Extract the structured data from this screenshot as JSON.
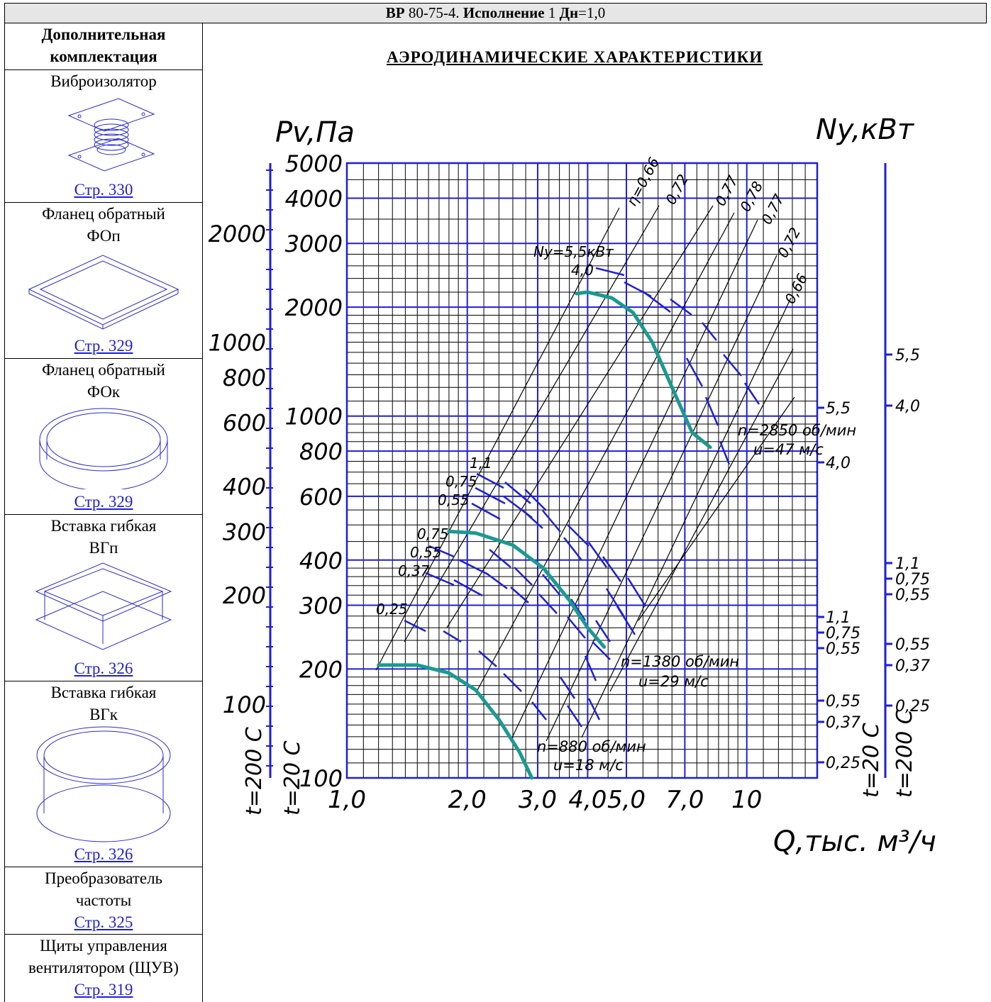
{
  "header": {
    "model": "ВР",
    "size": "80-75-4.",
    "exec_label": "Исполнение",
    "exec_value": "1",
    "dn_label": "Дн",
    "dn_value": "=1,0"
  },
  "sidebar": {
    "heading": [
      "Дополнительная",
      "комплектация"
    ],
    "items": [
      {
        "title": [
          "Виброизолятор"
        ],
        "link": "Стр. 330",
        "icon": "vibration-isolator-icon"
      },
      {
        "title": [
          "Фланец обратный",
          "ФОп"
        ],
        "link": "Стр. 329",
        "icon": "square-flange-icon"
      },
      {
        "title": [
          "Фланец обратный",
          "ФОк"
        ],
        "link": "Стр. 329",
        "icon": "round-flange-icon"
      },
      {
        "title": [
          "Вставка гибкая",
          "ВГп"
        ],
        "link": "Стр. 326",
        "icon": "square-flexible-insert-icon"
      },
      {
        "title": [
          "Вставка гибкая",
          "ВГк"
        ],
        "link": "Стр. 326",
        "icon": "round-flexible-insert-icon"
      },
      {
        "title": [
          "Преобразователь",
          "частоты"
        ],
        "link": "Стр. 325"
      },
      {
        "title": [
          "Щиты управления",
          "вентилятором (ЩУВ)"
        ],
        "link": "Стр. 319"
      }
    ]
  },
  "chart_title": "АЭРОДИНАМИЧЕСКИЕ ХАРАКТЕРИСТИКИ",
  "colors": {
    "grid": "#1f1fd6",
    "curve": "#1a9a90",
    "lines": "#000000",
    "link": "#1f1fd6"
  },
  "chart_data": {
    "type": "line",
    "xscale": "log",
    "yscale": "log",
    "xlabel": "Q,тыс. м³/ч",
    "ylabel_left": "Pv,Па",
    "ylabel_right": "Ny,кВт",
    "xlim": [
      1.0,
      15
    ],
    "ylim": [
      100,
      5000
    ],
    "x_ticks": [
      1.0,
      2.0,
      3.0,
      4.0,
      5.0,
      7.0,
      10
    ],
    "x_tick_labels": [
      "1,0",
      "2,0",
      "3,0",
      "4,0",
      "5,0",
      "7,0",
      "10"
    ],
    "y_ticks": [
      100,
      200,
      300,
      400,
      600,
      800,
      1000,
      2000,
      3000,
      4000,
      5000
    ],
    "y_tick_labels_20C": [
      "100",
      "200",
      "300",
      "400",
      "600",
      "800",
      "1000",
      "2000",
      "3000",
      "4000",
      "5000"
    ],
    "y_ticks_200C": [
      100,
      200,
      300,
      400,
      600,
      800,
      1000,
      2000
    ],
    "y_tick_labels_200C": [
      "100",
      "200",
      "300",
      "400",
      "600",
      "800",
      "1000",
      "2000"
    ],
    "temp_labels_left": [
      "t=200 С",
      "t=20 С"
    ],
    "temp_labels_right": [
      "t=20 С",
      "t=200 С"
    ],
    "power_axis_20C": [
      "5,5",
      "4,0",
      "1,1",
      "0,75",
      "0,55",
      "0,55",
      "0,37",
      "0,25"
    ],
    "power_axis_200C": [
      "5,5",
      "4,0",
      "1,1",
      "0,75",
      "0,55",
      "0,55",
      "0,37",
      "0,25"
    ],
    "efficiency_labels": [
      "η=0,66",
      "0,72",
      "0,77",
      "0,78",
      "0,77",
      "0,72",
      "0,66"
    ],
    "series": [
      {
        "name": "n=2850 об/мин",
        "speed_label": "u=47 м/с",
        "power_labels": [
          "Ny=5,5кВт",
          "4,0"
        ],
        "x": [
          3.75,
          4.0,
          4.6,
          5.2,
          5.8,
          6.5,
          7.3,
          8.1
        ],
        "y": [
          2180,
          2200,
          2120,
          1930,
          1600,
          1200,
          900,
          820
        ]
      },
      {
        "name": "n=1380 об/мин",
        "speed_label": "u=29 м/с",
        "power_labels": [
          "1,1",
          "0,75",
          "0,55",
          "0,75",
          "0,55",
          "0,37"
        ],
        "x": [
          1.8,
          2.1,
          2.6,
          3.1,
          3.6,
          4.0,
          4.4
        ],
        "y": [
          480,
          475,
          440,
          380,
          310,
          260,
          230
        ]
      },
      {
        "name": "n=880 об/мин",
        "speed_label": "u=18 м/с",
        "power_labels": [
          "0,25"
        ],
        "x": [
          1.2,
          1.5,
          1.8,
          2.1,
          2.4,
          2.7,
          2.9
        ],
        "y": [
          205,
          205,
          195,
          175,
          145,
          118,
          100
        ]
      }
    ]
  }
}
